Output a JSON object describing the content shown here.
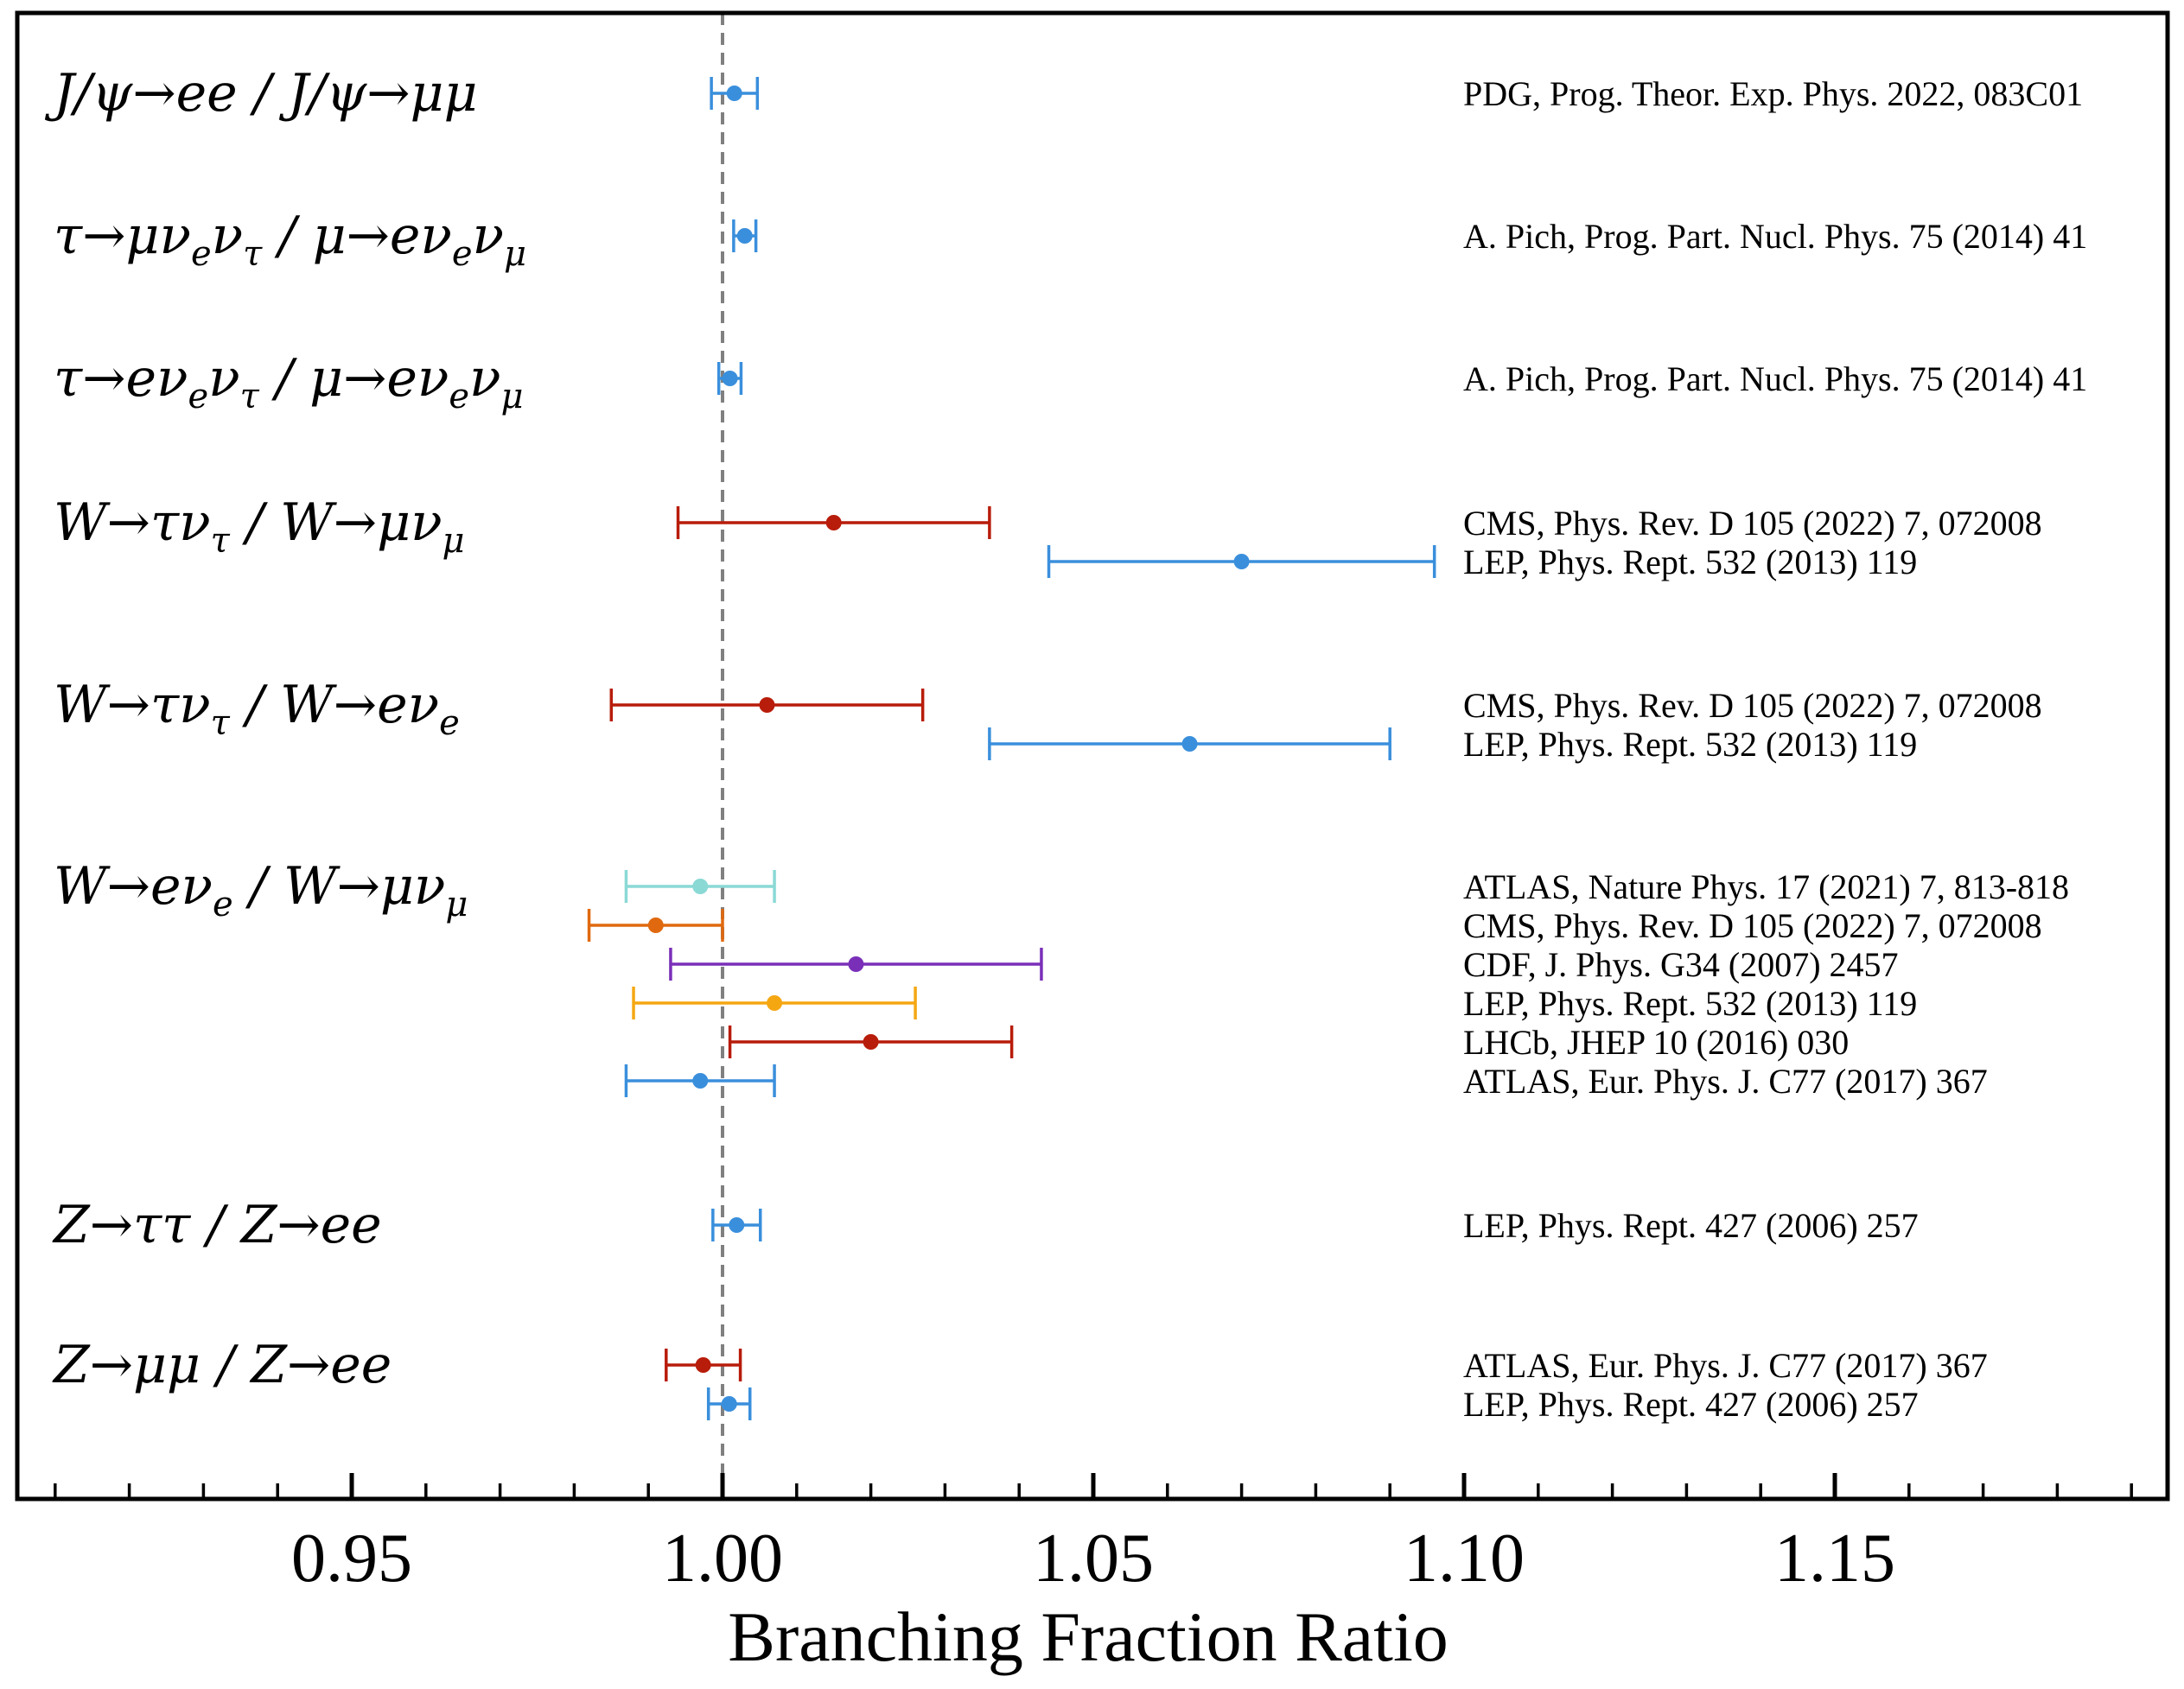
{
  "chart_data": {
    "type": "scatter",
    "xlabel": "Branching Fraction Ratio",
    "xlim": [
      0.905,
      1.195
    ],
    "x_ticks": [
      "0.95",
      "1.00",
      "1.05",
      "1.10",
      "1.15"
    ],
    "x_tick_values": [
      0.95,
      1.0,
      1.05,
      1.1,
      1.15
    ],
    "minor_tick_step": 0.01,
    "reference_line": 1.0,
    "grid": false,
    "colors": {
      "blue": "#3a8fdc",
      "red": "#b81c0a",
      "teal": "#8ad9d5",
      "orange": "#e0690f",
      "purple": "#7a2fb8",
      "yellow": "#f5a712",
      "refline": "#808080"
    },
    "groups": [
      {
        "label": "J/ψ→ee / J/ψ→μμ",
        "measurements": [
          {
            "source": "PDG, Prog. Theor. Exp. Phys. 2022, 083C01",
            "value": 1.0016,
            "err_low": 0.0031,
            "err_high": 0.0031,
            "color": "#3a8fdc"
          }
        ]
      },
      {
        "label": "τ→μν_eν_τ / μ→eν_eν_μ",
        "measurements": [
          {
            "source": "A. Pich, Prog. Part. Nucl. Phys. 75 (2014) 41",
            "value": 1.003,
            "err_low": 0.0015,
            "err_high": 0.0015,
            "color": "#3a8fdc"
          }
        ]
      },
      {
        "label": "τ→eν_eν_τ / μ→eν_eν_μ",
        "measurements": [
          {
            "source": "A. Pich, Prog. Part. Nucl. Phys. 75 (2014) 41",
            "value": 1.001,
            "err_low": 0.0015,
            "err_high": 0.0015,
            "color": "#3a8fdc"
          }
        ]
      },
      {
        "label": "W→τν_τ / W→μν_μ",
        "measurements": [
          {
            "source": "CMS, Phys. Rev. D 105 (2022) 7, 072008",
            "value": 1.015,
            "err_low": 0.021,
            "err_high": 0.021,
            "color": "#b81c0a"
          },
          {
            "source": "LEP, Phys. Rept. 532 (2013) 119",
            "value": 1.07,
            "err_low": 0.026,
            "err_high": 0.026,
            "color": "#3a8fdc"
          }
        ]
      },
      {
        "label": "W→τν_τ / W→eν_e",
        "measurements": [
          {
            "source": "CMS, Phys. Rev. D 105 (2022) 7, 072008",
            "value": 1.006,
            "err_low": 0.021,
            "err_high": 0.021,
            "color": "#b81c0a"
          },
          {
            "source": "LEP, Phys. Rept. 532 (2013) 119",
            "value": 1.063,
            "err_low": 0.027,
            "err_high": 0.027,
            "color": "#3a8fdc"
          }
        ]
      },
      {
        "label": "W→eν_e / W→μν_μ",
        "measurements": [
          {
            "source": "ATLAS, Nature Phys. 17 (2021) 7, 813-818",
            "value": 0.997,
            "err_low": 0.01,
            "err_high": 0.01,
            "color": "#8ad9d5"
          },
          {
            "source": "CMS, Phys. Rev. D 105 (2022) 7, 072008",
            "value": 0.991,
            "err_low": 0.009,
            "err_high": 0.009,
            "color": "#e0690f"
          },
          {
            "source": "CDF, J. Phys. G34 (2007) 2457",
            "value": 1.018,
            "err_low": 0.025,
            "err_high": 0.025,
            "color": "#7a2fb8"
          },
          {
            "source": "LEP, Phys. Rept. 532 (2013) 119",
            "value": 1.007,
            "err_low": 0.019,
            "err_high": 0.019,
            "color": "#f5a712"
          },
          {
            "source": "LHCb, JHEP 10 (2016) 030",
            "value": 1.02,
            "err_low": 0.019,
            "err_high": 0.019,
            "color": "#b81c0a"
          },
          {
            "source": "ATLAS, Eur. Phys. J. C77 (2017) 367",
            "value": 0.997,
            "err_low": 0.01,
            "err_high": 0.01,
            "color": "#3a8fdc"
          }
        ]
      },
      {
        "label": "Z→ττ / Z→ee",
        "measurements": [
          {
            "source": "LEP, Phys. Rept. 427 (2006) 257",
            "value": 1.0019,
            "err_low": 0.0032,
            "err_high": 0.0032,
            "color": "#3a8fdc"
          }
        ]
      },
      {
        "label": "Z→μμ / Z→ee",
        "measurements": [
          {
            "source": "ATLAS, Eur. Phys. J. C77 (2017) 367",
            "value": 0.9974,
            "err_low": 0.005,
            "err_high": 0.005,
            "color": "#b81c0a"
          },
          {
            "source": "LEP, Phys. Rept. 427 (2006) 257",
            "value": 1.0009,
            "err_low": 0.0028,
            "err_high": 0.0028,
            "color": "#3a8fdc"
          }
        ]
      }
    ]
  }
}
